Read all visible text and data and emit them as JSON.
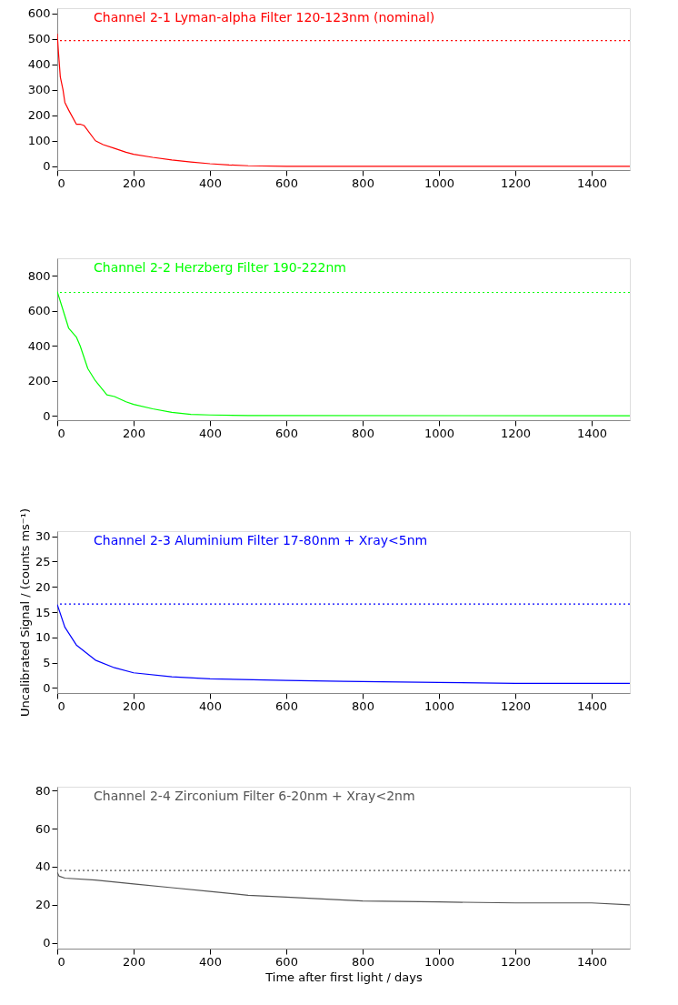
{
  "chart_data": [
    {
      "type": "line",
      "title": "Channel 2-1      Lyman-alpha Filter  120-123nm (nominal)",
      "xlim": [
        0,
        1500
      ],
      "xticks": [
        0,
        200,
        400,
        600,
        800,
        1000,
        1200,
        1400
      ],
      "ylim": [
        -15,
        620
      ],
      "yticks": [
        0,
        100,
        200,
        300,
        400,
        500,
        600
      ],
      "grid": false,
      "ref_lines": [
        {
          "axis": "y",
          "value": 493,
          "color": "#ff0000",
          "line_style": "dotted"
        }
      ],
      "series": [
        {
          "color": "#ff0000",
          "x": [
            0,
            3,
            8,
            15,
            20,
            30,
            50,
            60,
            70,
            100,
            120,
            150,
            180,
            200,
            250,
            300,
            350,
            400,
            450,
            500,
            600,
            1500
          ],
          "values": [
            520,
            450,
            350,
            300,
            250,
            220,
            165,
            165,
            160,
            100,
            85,
            70,
            55,
            47,
            35,
            25,
            17,
            10,
            5,
            2,
            0,
            0
          ]
        }
      ]
    },
    {
      "type": "line",
      "title": "Channel 2-2      Herzberg Filter        190-222nm",
      "xlim": [
        0,
        1500
      ],
      "xticks": [
        0,
        200,
        400,
        600,
        800,
        1000,
        1200,
        1400
      ],
      "ylim": [
        -25,
        900
      ],
      "yticks": [
        0,
        200,
        400,
        600,
        800
      ],
      "grid": false,
      "ref_lines": [
        {
          "axis": "y",
          "value": 705,
          "color": "#00ff00",
          "line_style": "dotted"
        }
      ],
      "series": [
        {
          "color": "#00ff00",
          "x": [
            0,
            10,
            30,
            50,
            60,
            80,
            100,
            130,
            150,
            180,
            200,
            250,
            300,
            350,
            400,
            500,
            1500
          ],
          "values": [
            710,
            640,
            500,
            450,
            400,
            270,
            200,
            120,
            110,
            80,
            65,
            40,
            20,
            8,
            5,
            2,
            0
          ]
        }
      ]
    },
    {
      "type": "line",
      "title": "Channel 2-3      Aluminium Filter       17-80nm + Xray<5nm",
      "ylabel": "Uncalibrated Signal / (counts ms⁻¹)",
      "xlim": [
        0,
        1500
      ],
      "xticks": [
        0,
        200,
        400,
        600,
        800,
        1000,
        1200,
        1400
      ],
      "ylim": [
        -1,
        31
      ],
      "yticks": [
        0,
        5,
        10,
        15,
        20,
        25,
        30
      ],
      "grid": false,
      "ref_lines": [
        {
          "axis": "y",
          "value": 16.6,
          "color": "#0000ff",
          "line_style": "dotted"
        }
      ],
      "series": [
        {
          "color": "#0000ff",
          "x": [
            0,
            20,
            50,
            100,
            150,
            200,
            300,
            400,
            600,
            750,
            1000,
            1200,
            1500
          ],
          "values": [
            16.5,
            12,
            8.5,
            5.5,
            4,
            3,
            2.2,
            1.8,
            1.5,
            1.3,
            1.1,
            0.9,
            0.9
          ]
        }
      ]
    },
    {
      "type": "line",
      "title": "Channel 2-4      Zirconium Filter       6-20nm + Xray<2nm",
      "xlabel": "Time after first light / days",
      "xlim": [
        0,
        1500
      ],
      "xticks": [
        0,
        200,
        400,
        600,
        800,
        1000,
        1200,
        1400
      ],
      "ylim": [
        -3,
        82
      ],
      "yticks": [
        0,
        20,
        40,
        60,
        80
      ],
      "grid": false,
      "ref_lines": [
        {
          "axis": "y",
          "value": 38,
          "color": "#555555",
          "line_style": "dotted"
        }
      ],
      "series": [
        {
          "color": "#555555",
          "x": [
            0,
            5,
            20,
            100,
            200,
            300,
            400,
            500,
            600,
            800,
            1000,
            1200,
            1400,
            1500
          ],
          "values": [
            37,
            35,
            34,
            33,
            31,
            29,
            27,
            25,
            24,
            22,
            21.5,
            21,
            21,
            20
          ]
        }
      ]
    }
  ]
}
